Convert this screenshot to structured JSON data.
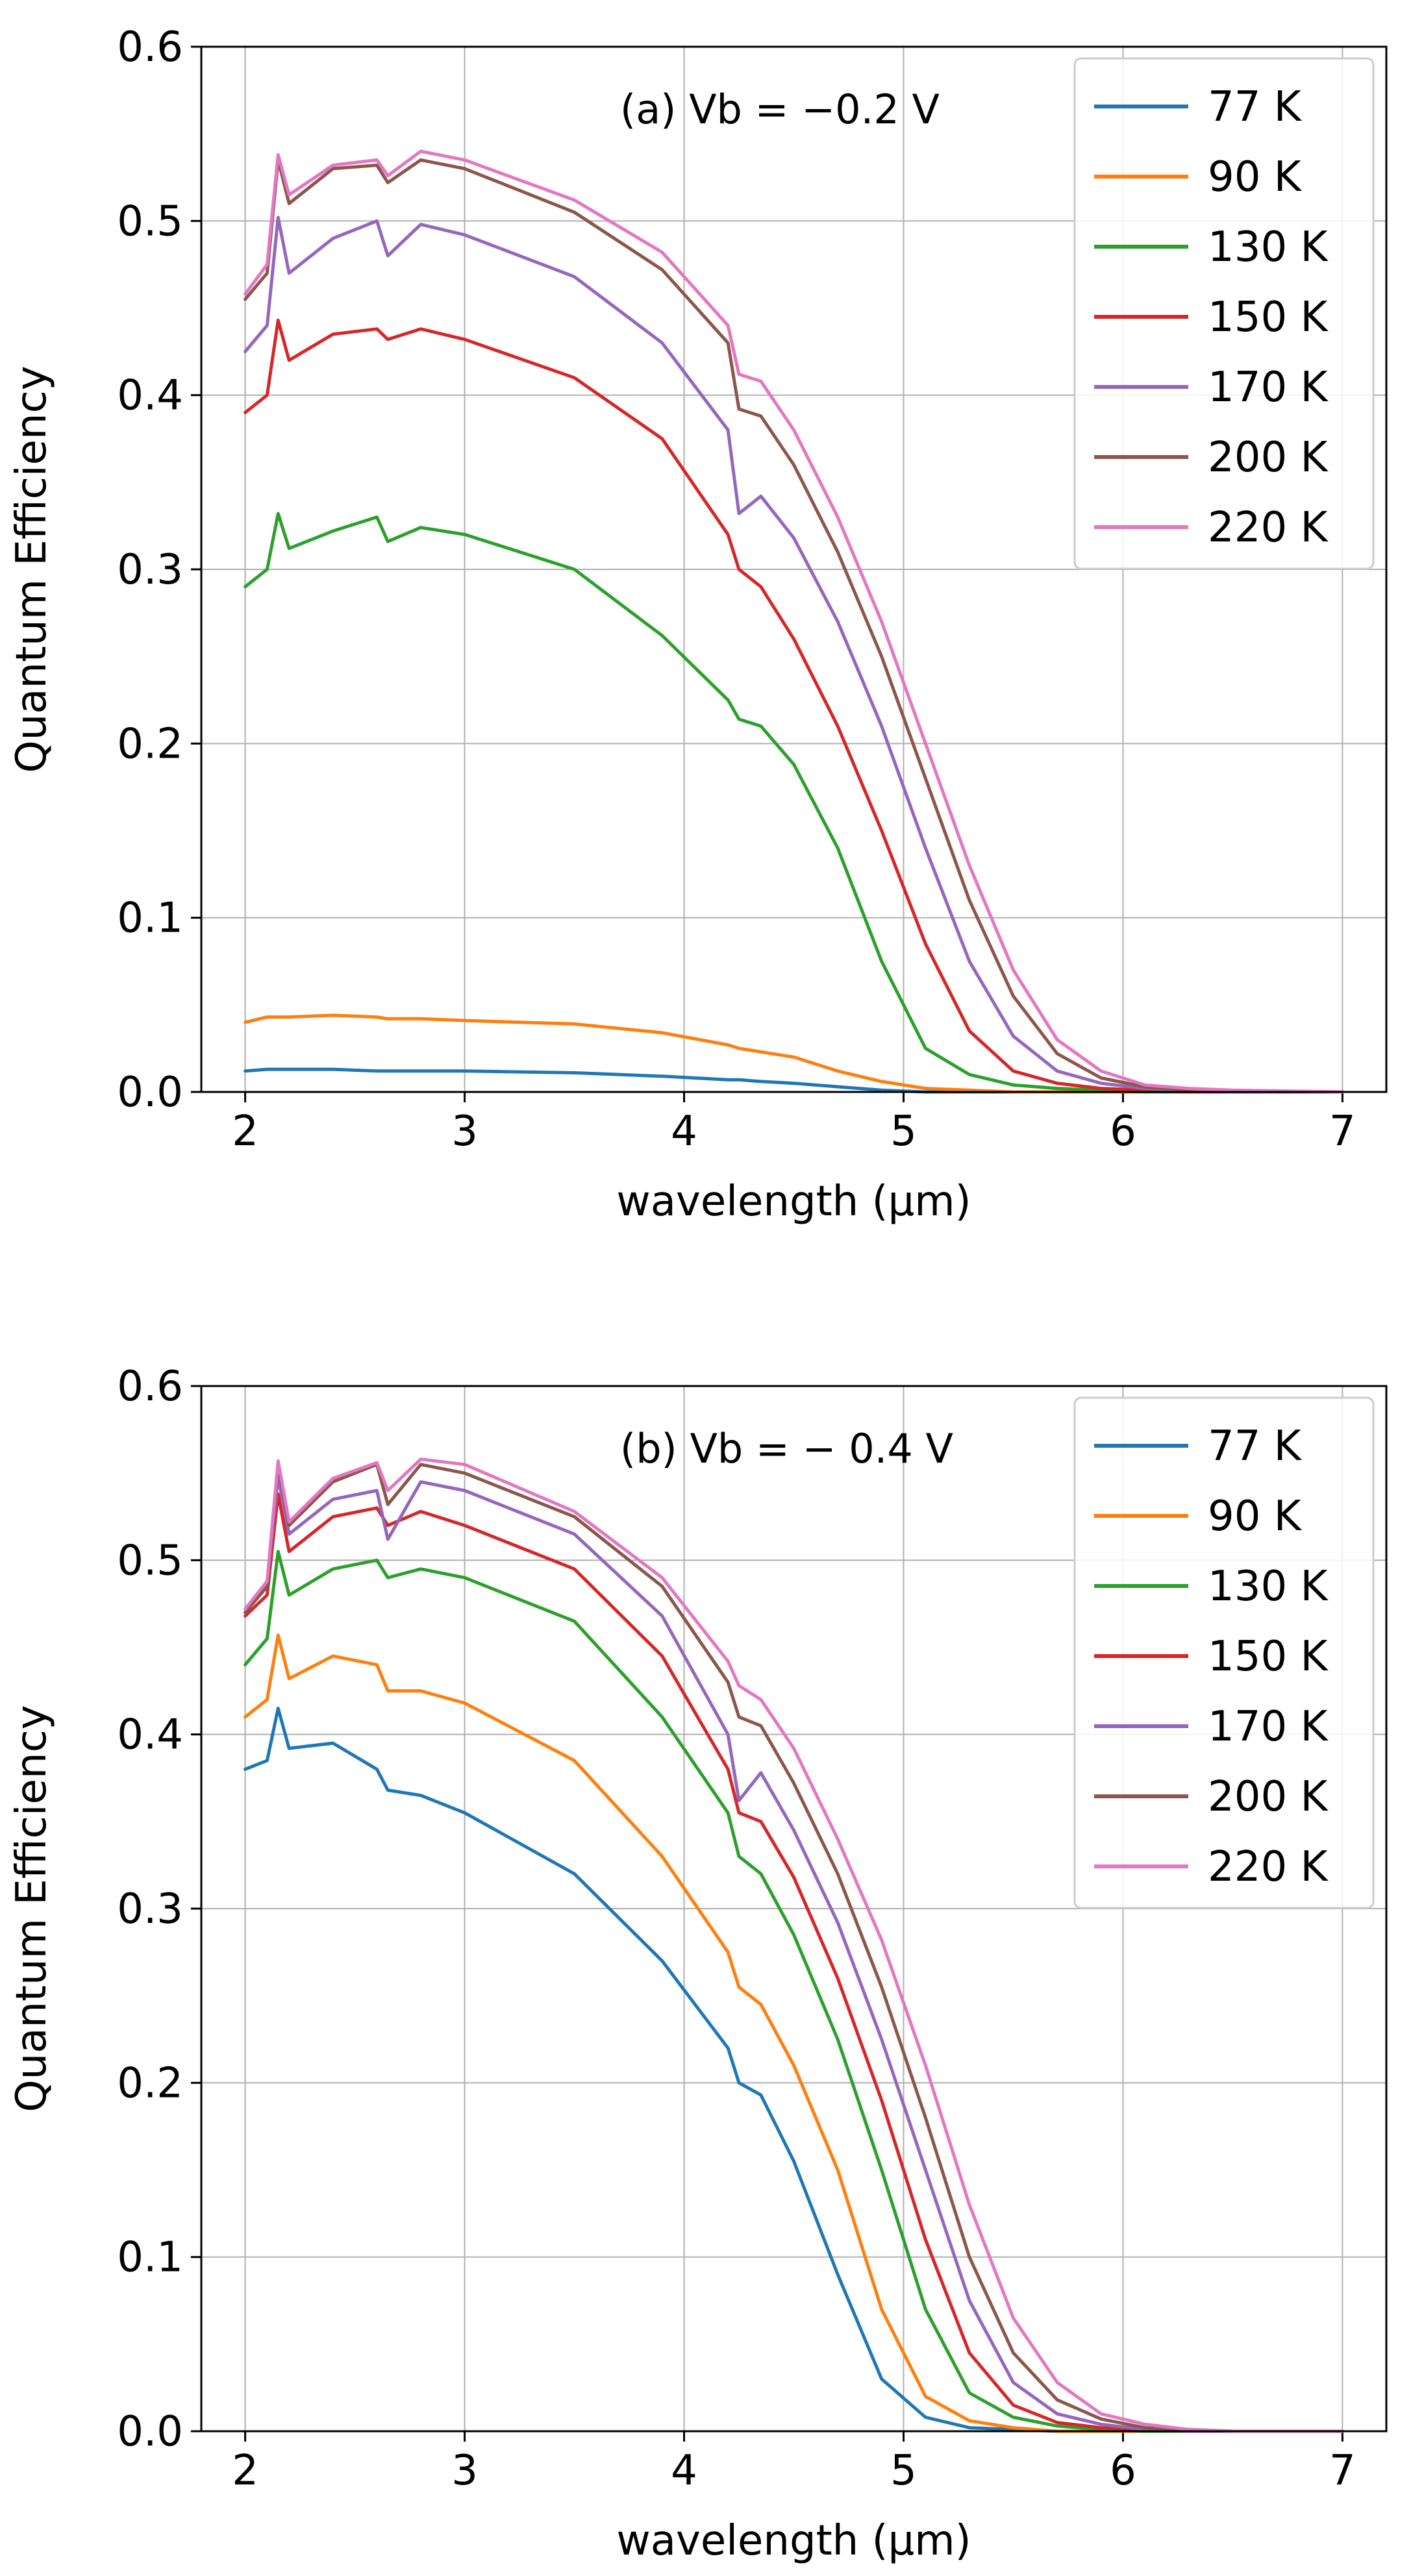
{
  "colors": {
    "77 K": "#1f77b4",
    "90 K": "#ff7f0e",
    "130 K": "#2ca02c",
    "150 K": "#d62728",
    "170 K": "#9467bd",
    "200 K": "#8c564b",
    "220 K": "#e377c2",
    "grid": "#b0b0b0",
    "axis": "#000000"
  },
  "chart_data": [
    {
      "type": "line",
      "panel": "a",
      "annotation": "(a) Vb = −0.2 V",
      "xlabel": "wavelength (μm)",
      "ylabel": "Quantum Efficiency",
      "xlim": [
        1.8,
        7.2
      ],
      "ylim": [
        0.0,
        0.6
      ],
      "xticks": [
        "2",
        "3",
        "4",
        "5",
        "6",
        "7"
      ],
      "yticks": [
        "0.0",
        "0.1",
        "0.2",
        "0.3",
        "0.4",
        "0.5",
        "0.6"
      ],
      "grid": true,
      "legend_position": "top-right",
      "x": [
        2.0,
        2.1,
        2.15,
        2.2,
        2.4,
        2.6,
        2.65,
        2.8,
        3.0,
        3.5,
        3.9,
        4.2,
        4.25,
        4.35,
        4.5,
        4.7,
        4.9,
        5.1,
        5.3,
        5.5,
        5.7,
        5.9,
        6.1,
        6.3,
        6.5,
        7.0
      ],
      "series": [
        {
          "name": "77 K",
          "values": [
            0.012,
            0.013,
            0.013,
            0.013,
            0.013,
            0.012,
            0.012,
            0.012,
            0.012,
            0.011,
            0.009,
            0.007,
            0.007,
            0.006,
            0.005,
            0.003,
            0.001,
            0.0,
            0.0,
            0.0,
            0.0,
            0.0,
            0.0,
            0.0,
            0.0,
            0.0
          ]
        },
        {
          "name": "90 K",
          "values": [
            0.04,
            0.043,
            0.043,
            0.043,
            0.044,
            0.043,
            0.042,
            0.042,
            0.041,
            0.039,
            0.034,
            0.027,
            0.025,
            0.023,
            0.02,
            0.012,
            0.006,
            0.002,
            0.001,
            0.0,
            0.0,
            0.0,
            0.0,
            0.0,
            0.0,
            0.0
          ]
        },
        {
          "name": "130 K",
          "values": [
            0.29,
            0.3,
            0.332,
            0.312,
            0.322,
            0.33,
            0.316,
            0.324,
            0.32,
            0.3,
            0.262,
            0.225,
            0.214,
            0.21,
            0.188,
            0.14,
            0.075,
            0.025,
            0.01,
            0.004,
            0.002,
            0.001,
            0.0,
            0.0,
            0.0,
            0.0
          ]
        },
        {
          "name": "150 K",
          "values": [
            0.39,
            0.4,
            0.443,
            0.42,
            0.435,
            0.438,
            0.432,
            0.438,
            0.432,
            0.41,
            0.375,
            0.32,
            0.3,
            0.29,
            0.26,
            0.21,
            0.15,
            0.085,
            0.035,
            0.012,
            0.005,
            0.002,
            0.001,
            0.0,
            0.0,
            0.0
          ]
        },
        {
          "name": "170 K",
          "values": [
            0.425,
            0.44,
            0.502,
            0.47,
            0.49,
            0.5,
            0.48,
            0.498,
            0.492,
            0.468,
            0.43,
            0.38,
            0.332,
            0.342,
            0.318,
            0.27,
            0.21,
            0.14,
            0.075,
            0.032,
            0.012,
            0.005,
            0.002,
            0.001,
            0.0,
            0.0
          ]
        },
        {
          "name": "200 K",
          "values": [
            0.455,
            0.47,
            0.535,
            0.51,
            0.53,
            0.532,
            0.522,
            0.535,
            0.53,
            0.505,
            0.472,
            0.43,
            0.392,
            0.388,
            0.36,
            0.31,
            0.25,
            0.18,
            0.11,
            0.055,
            0.022,
            0.008,
            0.003,
            0.001,
            0.0,
            0.0
          ]
        },
        {
          "name": "220 K",
          "values": [
            0.458,
            0.475,
            0.538,
            0.515,
            0.532,
            0.535,
            0.526,
            0.54,
            0.535,
            0.512,
            0.482,
            0.44,
            0.412,
            0.408,
            0.38,
            0.33,
            0.27,
            0.2,
            0.13,
            0.07,
            0.03,
            0.012,
            0.004,
            0.002,
            0.001,
            0.0
          ]
        }
      ]
    },
    {
      "type": "line",
      "panel": "b",
      "annotation": "(b) Vb = − 0.4 V",
      "xlabel": "wavelength (μm)",
      "ylabel": "Quantum Efficiency",
      "xlim": [
        1.8,
        7.2
      ],
      "ylim": [
        0.0,
        0.6
      ],
      "xticks": [
        "2",
        "3",
        "4",
        "5",
        "6",
        "7"
      ],
      "yticks": [
        "0.0",
        "0.1",
        "0.2",
        "0.3",
        "0.4",
        "0.5",
        "0.6"
      ],
      "grid": true,
      "legend_position": "top-right",
      "x": [
        2.0,
        2.1,
        2.15,
        2.2,
        2.4,
        2.6,
        2.65,
        2.8,
        3.0,
        3.5,
        3.9,
        4.2,
        4.25,
        4.35,
        4.5,
        4.7,
        4.9,
        5.1,
        5.3,
        5.5,
        5.7,
        5.9,
        6.1,
        6.3,
        6.5,
        7.0
      ],
      "series": [
        {
          "name": "77 K",
          "values": [
            0.38,
            0.385,
            0.415,
            0.392,
            0.395,
            0.38,
            0.368,
            0.365,
            0.355,
            0.32,
            0.27,
            0.22,
            0.2,
            0.193,
            0.155,
            0.09,
            0.03,
            0.008,
            0.002,
            0.001,
            0.0,
            0.0,
            0.0,
            0.0,
            0.0,
            0.0
          ]
        },
        {
          "name": "90 K",
          "values": [
            0.41,
            0.42,
            0.457,
            0.432,
            0.445,
            0.44,
            0.425,
            0.425,
            0.418,
            0.385,
            0.33,
            0.275,
            0.255,
            0.245,
            0.21,
            0.15,
            0.07,
            0.02,
            0.006,
            0.002,
            0.0,
            0.0,
            0.0,
            0.0,
            0.0,
            0.0
          ]
        },
        {
          "name": "130 K",
          "values": [
            0.44,
            0.455,
            0.505,
            0.48,
            0.495,
            0.5,
            0.49,
            0.495,
            0.49,
            0.465,
            0.41,
            0.355,
            0.33,
            0.32,
            0.285,
            0.225,
            0.15,
            0.07,
            0.022,
            0.008,
            0.003,
            0.001,
            0.0,
            0.0,
            0.0,
            0.0
          ]
        },
        {
          "name": "150 K",
          "values": [
            0.468,
            0.48,
            0.538,
            0.505,
            0.525,
            0.53,
            0.52,
            0.528,
            0.52,
            0.495,
            0.445,
            0.38,
            0.355,
            0.35,
            0.318,
            0.26,
            0.19,
            0.11,
            0.045,
            0.015,
            0.005,
            0.002,
            0.001,
            0.0,
            0.0,
            0.0
          ]
        },
        {
          "name": "170 K",
          "values": [
            0.47,
            0.485,
            0.548,
            0.515,
            0.535,
            0.54,
            0.512,
            0.545,
            0.54,
            0.515,
            0.468,
            0.4,
            0.362,
            0.378,
            0.345,
            0.292,
            0.225,
            0.15,
            0.075,
            0.028,
            0.01,
            0.004,
            0.001,
            0.0,
            0.0,
            0.0
          ]
        },
        {
          "name": "200 K",
          "values": [
            0.47,
            0.485,
            0.555,
            0.52,
            0.545,
            0.555,
            0.532,
            0.555,
            0.55,
            0.525,
            0.485,
            0.43,
            0.41,
            0.405,
            0.372,
            0.32,
            0.255,
            0.18,
            0.1,
            0.045,
            0.018,
            0.007,
            0.002,
            0.001,
            0.0,
            0.0
          ]
        },
        {
          "name": "220 K",
          "values": [
            0.472,
            0.488,
            0.557,
            0.522,
            0.547,
            0.556,
            0.54,
            0.558,
            0.555,
            0.528,
            0.49,
            0.442,
            0.428,
            0.42,
            0.392,
            0.34,
            0.282,
            0.21,
            0.13,
            0.065,
            0.028,
            0.01,
            0.004,
            0.001,
            0.0,
            0.0
          ]
        }
      ]
    }
  ]
}
